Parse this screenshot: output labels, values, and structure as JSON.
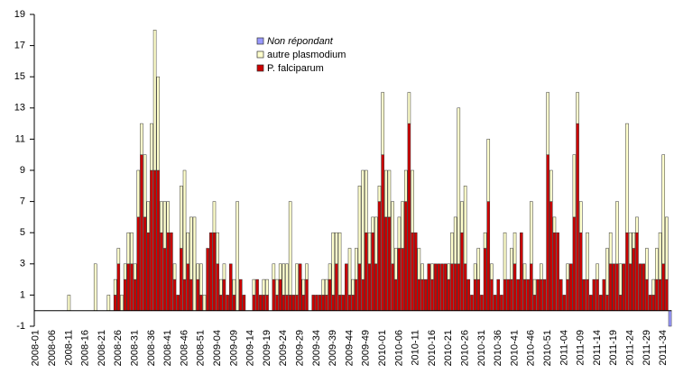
{
  "chart_data": {
    "type": "stacked_bar",
    "categories": [
      "2008-01",
      null,
      null,
      null,
      null,
      "2008-06",
      null,
      null,
      null,
      null,
      "2008-11",
      null,
      null,
      null,
      null,
      "2008-16",
      null,
      null,
      null,
      null,
      "2008-21",
      null,
      null,
      null,
      null,
      "2008-26",
      null,
      null,
      null,
      null,
      "2008-31",
      null,
      null,
      null,
      null,
      "2008-36",
      null,
      null,
      null,
      null,
      "2008-41",
      null,
      null,
      null,
      null,
      "2008-46",
      null,
      null,
      null,
      null,
      "2008-51",
      null,
      null,
      null,
      null,
      "2009-04",
      null,
      null,
      null,
      null,
      "2009-09",
      null,
      null,
      null,
      null,
      "2009-14",
      null,
      null,
      null,
      null,
      "2009-19",
      null,
      null,
      null,
      null,
      "2009-24",
      null,
      null,
      null,
      null,
      "2009-29",
      null,
      null,
      null,
      null,
      "2009-34",
      null,
      null,
      null,
      null,
      "2009-39",
      null,
      null,
      null,
      null,
      "2009-44",
      null,
      null,
      null,
      null,
      "2009-49",
      null,
      null,
      null,
      null,
      "2010-01",
      null,
      null,
      null,
      null,
      "2010-06",
      null,
      null,
      null,
      null,
      "2010-11",
      null,
      null,
      null,
      null,
      "2010-16",
      null,
      null,
      null,
      null,
      "2010-21",
      null,
      null,
      null,
      null,
      "2010-26",
      null,
      null,
      null,
      null,
      "2010-31",
      null,
      null,
      null,
      null,
      "2010-36",
      null,
      null,
      null,
      null,
      "2010-41",
      null,
      null,
      null,
      null,
      "2010-46",
      null,
      null,
      null,
      null,
      "2010-51",
      null,
      null,
      null,
      null,
      "2011-04",
      null,
      null,
      null,
      null,
      "2011-09",
      null,
      null,
      null,
      null,
      "2011-14",
      null,
      null,
      null,
      null,
      "2011-19",
      null,
      null,
      null,
      null,
      "2011-24",
      null,
      null,
      null,
      null,
      "2011-29",
      null,
      null,
      null,
      null,
      "2011-34",
      null,
      null
    ],
    "series": [
      {
        "name": "Non répondant",
        "color": "#9999ff",
        "italic": true,
        "values": [
          0,
          0,
          0,
          0,
          0,
          0,
          0,
          0,
          0,
          0,
          0,
          0,
          0,
          0,
          0,
          0,
          0,
          0,
          0,
          0,
          0,
          0,
          0,
          0,
          0,
          0,
          0,
          0,
          0,
          0,
          0,
          0,
          0,
          0,
          0,
          0,
          0,
          0,
          0,
          0,
          0,
          0,
          0,
          0,
          0,
          0,
          0,
          0,
          0,
          0,
          0,
          0,
          0,
          0,
          0,
          0,
          0,
          0,
          0,
          0,
          0,
          0,
          0,
          0,
          0,
          0,
          0,
          0,
          0,
          0,
          0,
          0,
          0,
          0,
          0,
          0,
          0,
          0,
          0,
          0,
          0,
          0,
          0,
          0,
          0,
          0,
          0,
          0,
          0,
          0,
          0,
          0,
          0,
          0,
          0,
          0,
          0,
          0,
          0,
          0,
          0,
          0,
          0,
          0,
          0,
          0,
          0,
          0,
          0,
          0,
          0,
          0,
          0,
          0,
          0,
          0,
          0,
          0,
          0,
          0,
          0,
          0,
          0,
          0,
          0,
          0,
          0,
          0,
          0,
          0,
          0,
          0,
          0,
          0,
          0,
          0,
          0,
          0,
          0,
          0,
          0,
          0,
          0,
          0,
          0,
          0,
          0,
          0,
          0,
          0,
          0,
          0,
          0,
          0,
          0,
          0,
          0,
          0,
          0,
          0,
          0,
          0,
          0,
          0,
          0,
          0,
          0,
          0,
          0,
          0,
          0,
          0,
          0,
          0,
          0,
          0,
          0,
          0,
          0,
          0,
          0,
          0,
          0,
          0,
          0,
          0,
          0,
          0,
          0,
          0,
          0,
          0,
          -1
        ]
      },
      {
        "name": "autre plasmodium",
        "color": "#ffffcc",
        "values": [
          0,
          0,
          0,
          0,
          0,
          0,
          0,
          0,
          0,
          0,
          1,
          0,
          0,
          0,
          0,
          0,
          0,
          0,
          3,
          0,
          0,
          0,
          1,
          0,
          1,
          1,
          1,
          1,
          2,
          2,
          1,
          3,
          2,
          4,
          2,
          3,
          9,
          6,
          2,
          3,
          2,
          0,
          1,
          0,
          4,
          7,
          2,
          4,
          6,
          1,
          2,
          1,
          0,
          0,
          2,
          2,
          1,
          1,
          0,
          0,
          1,
          7,
          0,
          0,
          0,
          0,
          1,
          0,
          0,
          1,
          1,
          0,
          1,
          1,
          1,
          2,
          2,
          6,
          0,
          2,
          0,
          1,
          1,
          0,
          0,
          0,
          0,
          1,
          1,
          1,
          4,
          2,
          4,
          0,
          0,
          3,
          1,
          2,
          5,
          7,
          4,
          2,
          1,
          3,
          1,
          4,
          3,
          3,
          4,
          2,
          2,
          3,
          2,
          2,
          4,
          0,
          2,
          1,
          0,
          0,
          1,
          0,
          0,
          0,
          0,
          1,
          2,
          3,
          10,
          2,
          5,
          0,
          0,
          1,
          2,
          0,
          1,
          4,
          1,
          0,
          0,
          0,
          3,
          0,
          2,
          2,
          0,
          0,
          1,
          0,
          4,
          1,
          0,
          1,
          0,
          4,
          2,
          1,
          0,
          0,
          0,
          1,
          0,
          4,
          2,
          2,
          0,
          3,
          0,
          0,
          1,
          0,
          0,
          3,
          2,
          0,
          4,
          2,
          0,
          7,
          2,
          1,
          1,
          0,
          0,
          2,
          0,
          1,
          2,
          3,
          7,
          4,
          0
        ]
      },
      {
        "name": "P. falciparum",
        "color": "#cc0000",
        "values": [
          0,
          0,
          0,
          0,
          0,
          0,
          0,
          0,
          0,
          0,
          0,
          0,
          0,
          0,
          0,
          0,
          0,
          0,
          0,
          0,
          0,
          0,
          0,
          0,
          1,
          3,
          0,
          2,
          3,
          3,
          2,
          6,
          10,
          6,
          5,
          9,
          9,
          9,
          5,
          4,
          5,
          5,
          2,
          1,
          4,
          2,
          3,
          2,
          0,
          2,
          1,
          0,
          4,
          5,
          5,
          3,
          1,
          2,
          1,
          3,
          1,
          0,
          2,
          1,
          0,
          0,
          1,
          2,
          1,
          1,
          1,
          0,
          2,
          1,
          2,
          1,
          1,
          1,
          1,
          1,
          3,
          1,
          2,
          0,
          1,
          1,
          1,
          1,
          1,
          2,
          1,
          3,
          1,
          1,
          3,
          1,
          1,
          2,
          3,
          2,
          5,
          3,
          5,
          3,
          7,
          10,
          6,
          6,
          3,
          2,
          4,
          4,
          7,
          12,
          5,
          5,
          2,
          2,
          2,
          3,
          2,
          3,
          3,
          3,
          3,
          2,
          3,
          3,
          3,
          5,
          3,
          2,
          1,
          2,
          2,
          1,
          4,
          7,
          2,
          1,
          2,
          1,
          2,
          2,
          2,
          3,
          2,
          5,
          2,
          2,
          3,
          1,
          2,
          2,
          2,
          10,
          7,
          5,
          5,
          2,
          1,
          2,
          3,
          6,
          12,
          5,
          2,
          2,
          1,
          2,
          2,
          1,
          2,
          1,
          3,
          3,
          3,
          1,
          3,
          5,
          3,
          4,
          5,
          3,
          3,
          2,
          1,
          1,
          2,
          2,
          3,
          2,
          0
        ]
      }
    ],
    "ylim": [
      -1,
      19
    ],
    "yticks": [
      -1,
      1,
      3,
      5,
      7,
      9,
      11,
      13,
      15,
      17,
      19
    ],
    "grid": false
  }
}
